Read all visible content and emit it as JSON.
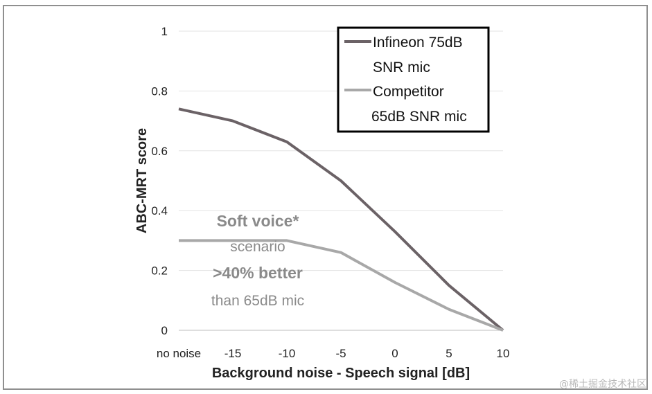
{
  "chart_data": {
    "type": "line",
    "x": [
      "no noise",
      "-15",
      "-10",
      "-5",
      "0",
      "5",
      "10"
    ],
    "ylim": [
      0,
      1
    ],
    "yticks": [
      "0",
      "0.2",
      "0.4",
      "0.6",
      "0.8",
      "1"
    ],
    "xlabel": "Background noise - Speech signal [dB]",
    "ylabel": "ABC-MRT score",
    "grid": "horizontal",
    "legend_position": "top-right",
    "series": [
      {
        "name": "Infineon 75dB SNR mic",
        "legend_lines": [
          "Infineon 75dB",
          "SNR mic"
        ],
        "color": "#6b6266",
        "values": [
          0.74,
          0.7,
          0.63,
          0.5,
          0.33,
          0.15,
          0.0
        ]
      },
      {
        "name": "Competitor 65dB SNR mic",
        "legend_lines": [
          "Competitor",
          "65dB  SNR mic"
        ],
        "color": "#a8a8a8",
        "values": [
          0.3,
          0.3,
          0.3,
          0.26,
          0.16,
          0.07,
          0.0
        ]
      }
    ],
    "annotation": [
      "Soft voice*",
      "scenario",
      ">40% better",
      "than 65dB mic"
    ]
  },
  "watermark": "@稀土掘金技术社区"
}
